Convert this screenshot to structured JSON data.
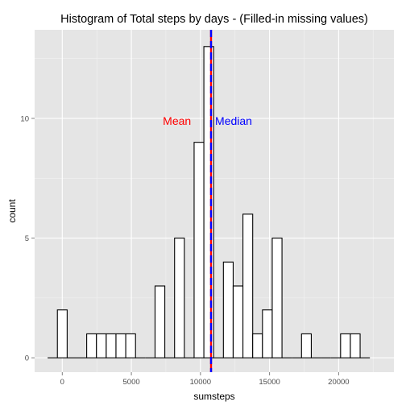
{
  "chart_data": {
    "type": "bar",
    "title": "Histogram of Total steps by days - (Filled-in missing values)",
    "xlabel": "sumsteps",
    "ylabel": "count",
    "xlim": [
      -2000,
      24000
    ],
    "ylim": [
      -0.6,
      13.7
    ],
    "xticks": [
      0,
      5000,
      10000,
      15000,
      20000
    ],
    "xtick_labels": [
      "0",
      "5000",
      "10000",
      "15000",
      "20000"
    ],
    "yticks": [
      0,
      5,
      10
    ],
    "ytick_labels": [
      "0",
      "5",
      "10"
    ],
    "grid": true,
    "bin_width": 706.7,
    "bins_x": [
      -706.7,
      0,
      706.7,
      1413.4,
      2120.1,
      2826.8,
      3533.5,
      4240.2,
      4946.9,
      5653.6,
      6360.3,
      7067,
      7773.7,
      8480.4,
      9187.1,
      9893.8,
      10600.5,
      11307.2,
      12013.9,
      12720.6,
      13427.3,
      14134,
      14840.7,
      15547.4,
      16254.1,
      16960.8,
      17667.5,
      18374.2,
      19080.9,
      19787.6,
      20494.3,
      21201,
      21907.7
    ],
    "values": [
      0,
      2,
      0,
      0,
      1,
      1,
      1,
      1,
      1,
      0,
      0,
      3,
      0,
      5,
      0,
      9,
      13,
      0,
      4,
      3,
      6,
      1,
      2,
      5,
      0,
      0,
      1,
      0,
      0,
      0,
      1,
      1,
      0
    ],
    "mean": 10766.19,
    "median": 10766.19,
    "mean_color": "#ff0000",
    "median_color": "#0000ff",
    "annotations": [
      {
        "text": "Mean",
        "x": 8300,
        "y": 9.9,
        "color": "#ff0000"
      },
      {
        "text": "Median",
        "x": 12400,
        "y": 9.9,
        "color": "#0000ff"
      }
    ]
  },
  "colors": {
    "panel_bg": "#e5e5e5",
    "grid_major": "#ffffff",
    "grid_minor": "#f2f2f2",
    "bar_fill": "#ffffff",
    "bar_outline": "#000000"
  }
}
